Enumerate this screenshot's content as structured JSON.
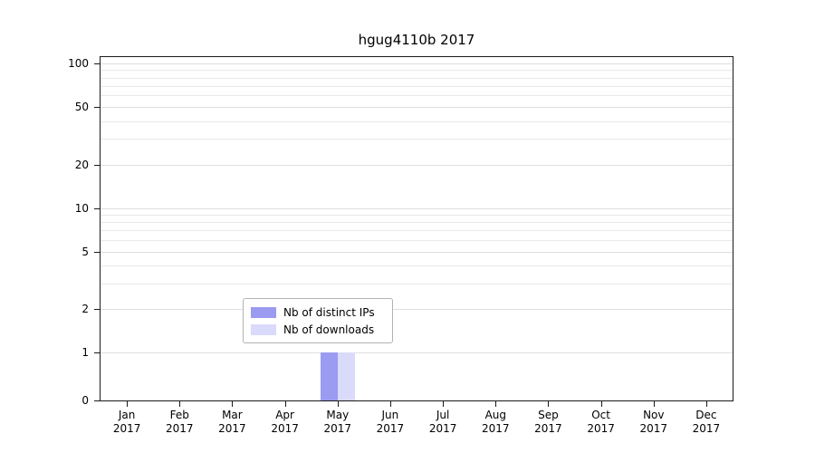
{
  "chart_data": {
    "type": "bar",
    "title": "hgug4110b 2017",
    "categories": [
      "Jan",
      "Feb",
      "Mar",
      "Apr",
      "May",
      "Jun",
      "Jul",
      "Aug",
      "Sep",
      "Oct",
      "Nov",
      "Dec"
    ],
    "year": "2017",
    "series": [
      {
        "name": "Nb of distinct IPs",
        "color": "#9b9bf2",
        "values": [
          0,
          0,
          0,
          0,
          1,
          0,
          0,
          0,
          0,
          0,
          0,
          0
        ]
      },
      {
        "name": "Nb of downloads",
        "color": "#dadafb",
        "values": [
          0,
          0,
          0,
          0,
          1,
          0,
          0,
          0,
          0,
          0,
          0,
          0
        ]
      }
    ],
    "yticks": [
      0,
      1,
      2,
      5,
      10,
      20,
      50,
      100
    ],
    "y_gridlines": [
      1,
      2,
      3,
      4,
      5,
      6,
      7,
      8,
      9,
      10,
      20,
      30,
      40,
      50,
      60,
      70,
      80,
      90,
      100
    ],
    "yscale": "log",
    "ylim": [
      0,
      100
    ],
    "grid": "horizontal",
    "legend_position": "bottom-inside"
  }
}
